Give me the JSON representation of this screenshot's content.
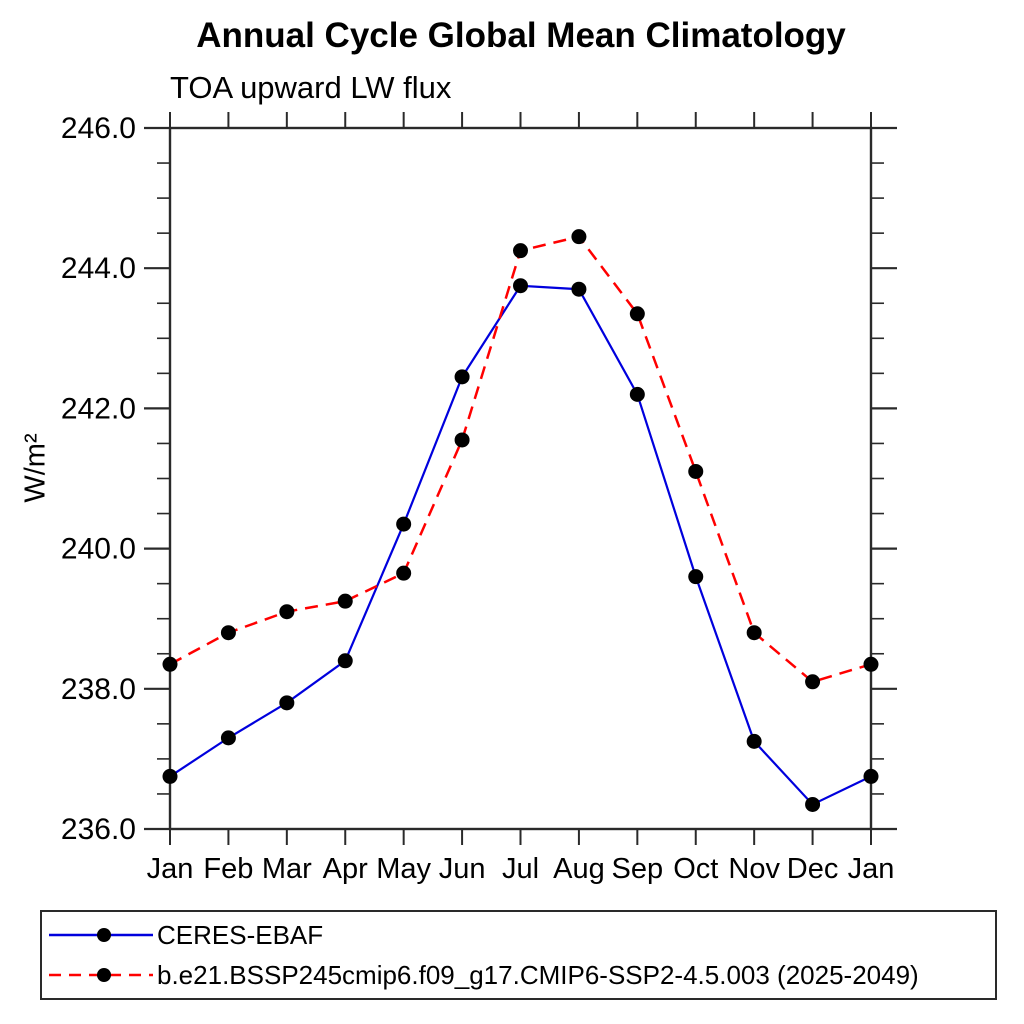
{
  "chart": {
    "title": "Annual Cycle Global Mean Climatology",
    "subtitle": "TOA upward LW flux",
    "ylabel": "W/m²"
  },
  "chart_data": {
    "type": "line",
    "title": "Annual Cycle Global Mean Climatology",
    "subtitle": "TOA upward LW flux",
    "xlabel": "",
    "ylabel": "W/m²",
    "categories": [
      "Jan",
      "Feb",
      "Mar",
      "Apr",
      "May",
      "Jun",
      "Jul",
      "Aug",
      "Sep",
      "Oct",
      "Nov",
      "Dec",
      "Jan"
    ],
    "ylim": [
      236.0,
      246.0
    ],
    "yticks": {
      "values": [
        236,
        238,
        240,
        242,
        244,
        246
      ],
      "labels": [
        "236.0",
        "238.0",
        "240.0",
        "242.0",
        "244.0",
        "246.0"
      ],
      "minor_step": 0.5
    },
    "grid": false,
    "legend_position": "bottom-left-box",
    "axis_color": "#2a2a2a",
    "marker_color": "#000000",
    "series": [
      {
        "name": "CERES-EBAF",
        "color": "#0000dd",
        "line_style": "solid",
        "marker": "filled-circle",
        "values": [
          236.75,
          237.3,
          237.8,
          238.4,
          240.35,
          242.45,
          243.75,
          243.7,
          242.2,
          239.6,
          237.25,
          236.35,
          236.75
        ]
      },
      {
        "name": "b.e21.BSSP245cmip6.f09_g17.CMIP6-SSP2-4.5.003 (2025-2049)",
        "color": "#ff0000",
        "line_style": "dashed",
        "marker": "filled-circle",
        "values": [
          238.35,
          238.8,
          239.1,
          239.25,
          239.65,
          241.55,
          244.25,
          244.45,
          243.35,
          241.1,
          238.8,
          238.1,
          238.35
        ]
      }
    ]
  }
}
